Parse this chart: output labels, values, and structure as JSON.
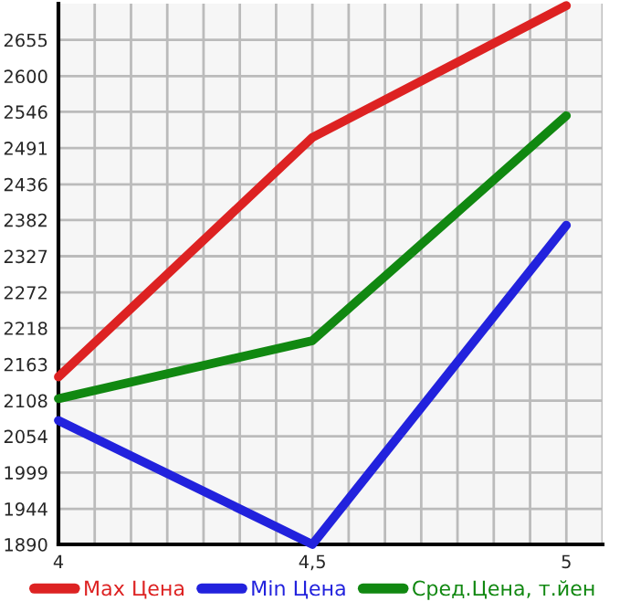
{
  "chart_data": {
    "type": "line",
    "x": [
      4,
      4.5,
      5
    ],
    "series": [
      {
        "name": "Max Цена",
        "color": "#dd2222",
        "values": [
          2144,
          2507,
          2707
        ]
      },
      {
        "name": "Min Цена",
        "color": "#2222dd",
        "values": [
          2078,
          1890,
          2374
        ]
      },
      {
        "name": "Сред.Цена, т.йен",
        "color": "#118811",
        "values": [
          2111,
          2199,
          2540
        ]
      }
    ],
    "xlim": [
      4,
      5.0714
    ],
    "xticks": [
      4,
      {
        "value": 4.0714,
        "label": null
      },
      {
        "value": 4.1429,
        "label": null
      },
      {
        "value": 4.2143,
        "label": null
      },
      {
        "value": 4.2857,
        "label": null
      },
      {
        "value": 4.3571,
        "label": null
      },
      {
        "value": 4.4286,
        "label": null
      },
      {
        "value": 4.5,
        "label": "4,5"
      },
      {
        "value": 4.5714,
        "label": null
      },
      {
        "value": 4.6429,
        "label": null
      },
      {
        "value": 4.7143,
        "label": null
      },
      {
        "value": 4.7857,
        "label": null
      },
      {
        "value": 4.8571,
        "label": null
      },
      {
        "value": 4.9286,
        "label": null
      },
      5,
      {
        "value": 5.0714,
        "label": null
      }
    ],
    "ylim": [
      1890,
      2710
    ],
    "yticks": [
      1890,
      1944,
      1999,
      2054,
      2108,
      2163,
      2218,
      2272,
      2327,
      2382,
      2436,
      2491,
      2546,
      2600,
      2655
    ],
    "grid": true,
    "legend": "bottom",
    "marker": "none",
    "line_style": "solid"
  }
}
